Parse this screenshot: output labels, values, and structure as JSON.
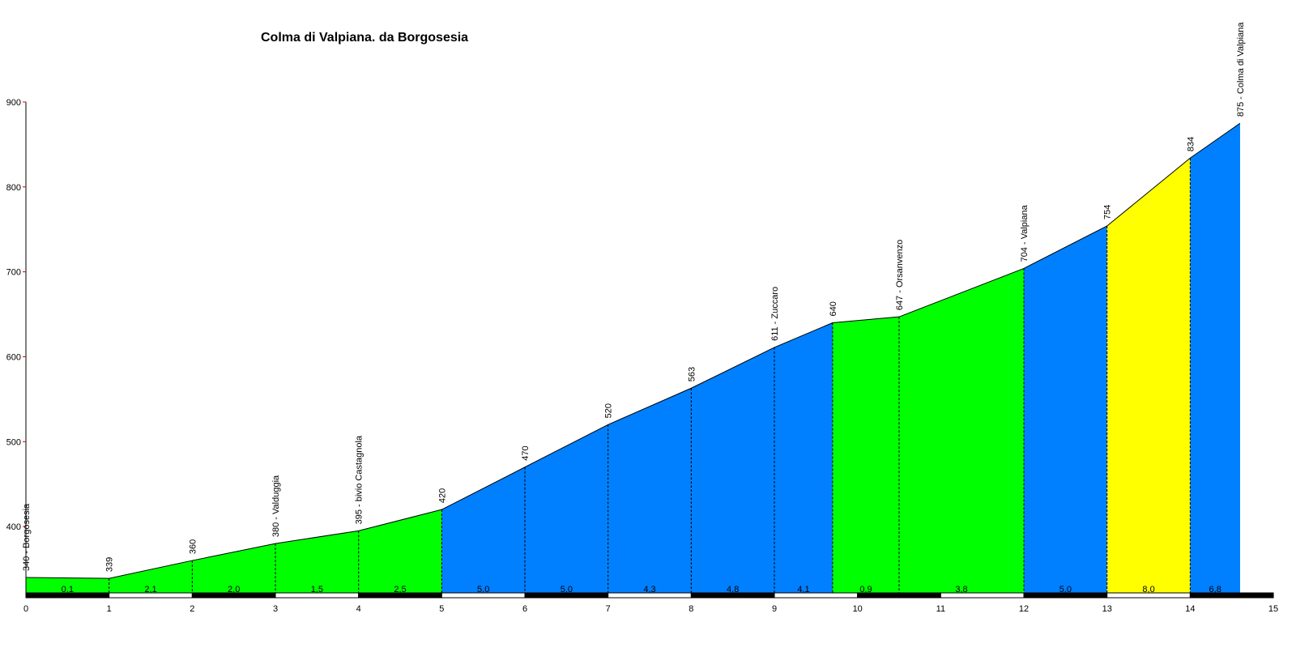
{
  "chart_data": {
    "type": "area",
    "title": "Colma di Valpiana. da Borgosesia",
    "xlabel": "",
    "ylabel": "",
    "xlim": [
      0,
      15
    ],
    "ylim": [
      320,
      900
    ],
    "y_ticks": [
      400,
      500,
      600,
      700,
      800,
      900
    ],
    "x_ticks": [
      0,
      1,
      2,
      3,
      4,
      5,
      6,
      7,
      8,
      9,
      10,
      11,
      12,
      13,
      14,
      15
    ],
    "points": [
      {
        "x": 0.0,
        "y": 340,
        "label": "340 - Borgosesia"
      },
      {
        "x": 1.0,
        "y": 339,
        "label": "339"
      },
      {
        "x": 2.0,
        "y": 360,
        "label": "360"
      },
      {
        "x": 3.0,
        "y": 380,
        "label": "380 - Valduggia"
      },
      {
        "x": 4.0,
        "y": 395,
        "label": "395 - bivio Castagnola"
      },
      {
        "x": 5.0,
        "y": 420,
        "label": "420"
      },
      {
        "x": 6.0,
        "y": 470,
        "label": "470"
      },
      {
        "x": 7.0,
        "y": 520,
        "label": "520"
      },
      {
        "x": 8.0,
        "y": 563,
        "label": "563"
      },
      {
        "x": 9.0,
        "y": 611,
        "label": "611 - Zuccaro"
      },
      {
        "x": 9.7,
        "y": 640,
        "label": "640"
      },
      {
        "x": 10.5,
        "y": 647,
        "label": "647 - Orsanvenzo"
      },
      {
        "x": 12.0,
        "y": 704,
        "label": "704 - Valpiana"
      },
      {
        "x": 13.0,
        "y": 754,
        "label": "754"
      },
      {
        "x": 14.0,
        "y": 834,
        "label": "834"
      },
      {
        "x": 14.6,
        "y": 875,
        "label": "875 - Colma di Valpiana"
      }
    ],
    "segments": [
      {
        "gradient": "0,1",
        "color": "#00ff00"
      },
      {
        "gradient": "2,1",
        "color": "#00ff00"
      },
      {
        "gradient": "2,0",
        "color": "#00ff00"
      },
      {
        "gradient": "1,5",
        "color": "#00ff00"
      },
      {
        "gradient": "2,5",
        "color": "#00ff00"
      },
      {
        "gradient": "5,0",
        "color": "#0080ff"
      },
      {
        "gradient": "5,0",
        "color": "#0080ff"
      },
      {
        "gradient": "4,3",
        "color": "#0080ff"
      },
      {
        "gradient": "4,8",
        "color": "#0080ff"
      },
      {
        "gradient": "4,1",
        "color": "#0080ff"
      },
      {
        "gradient": "0,9",
        "color": "#00ff00"
      },
      {
        "gradient": "3,8",
        "color": "#00ff00"
      },
      {
        "gradient": "5,0",
        "color": "#0080ff"
      },
      {
        "gradient": "8,0",
        "color": "#ffff00"
      },
      {
        "gradient": "6,8",
        "color": "#0080ff"
      }
    ],
    "grid": false,
    "legend": "none"
  }
}
